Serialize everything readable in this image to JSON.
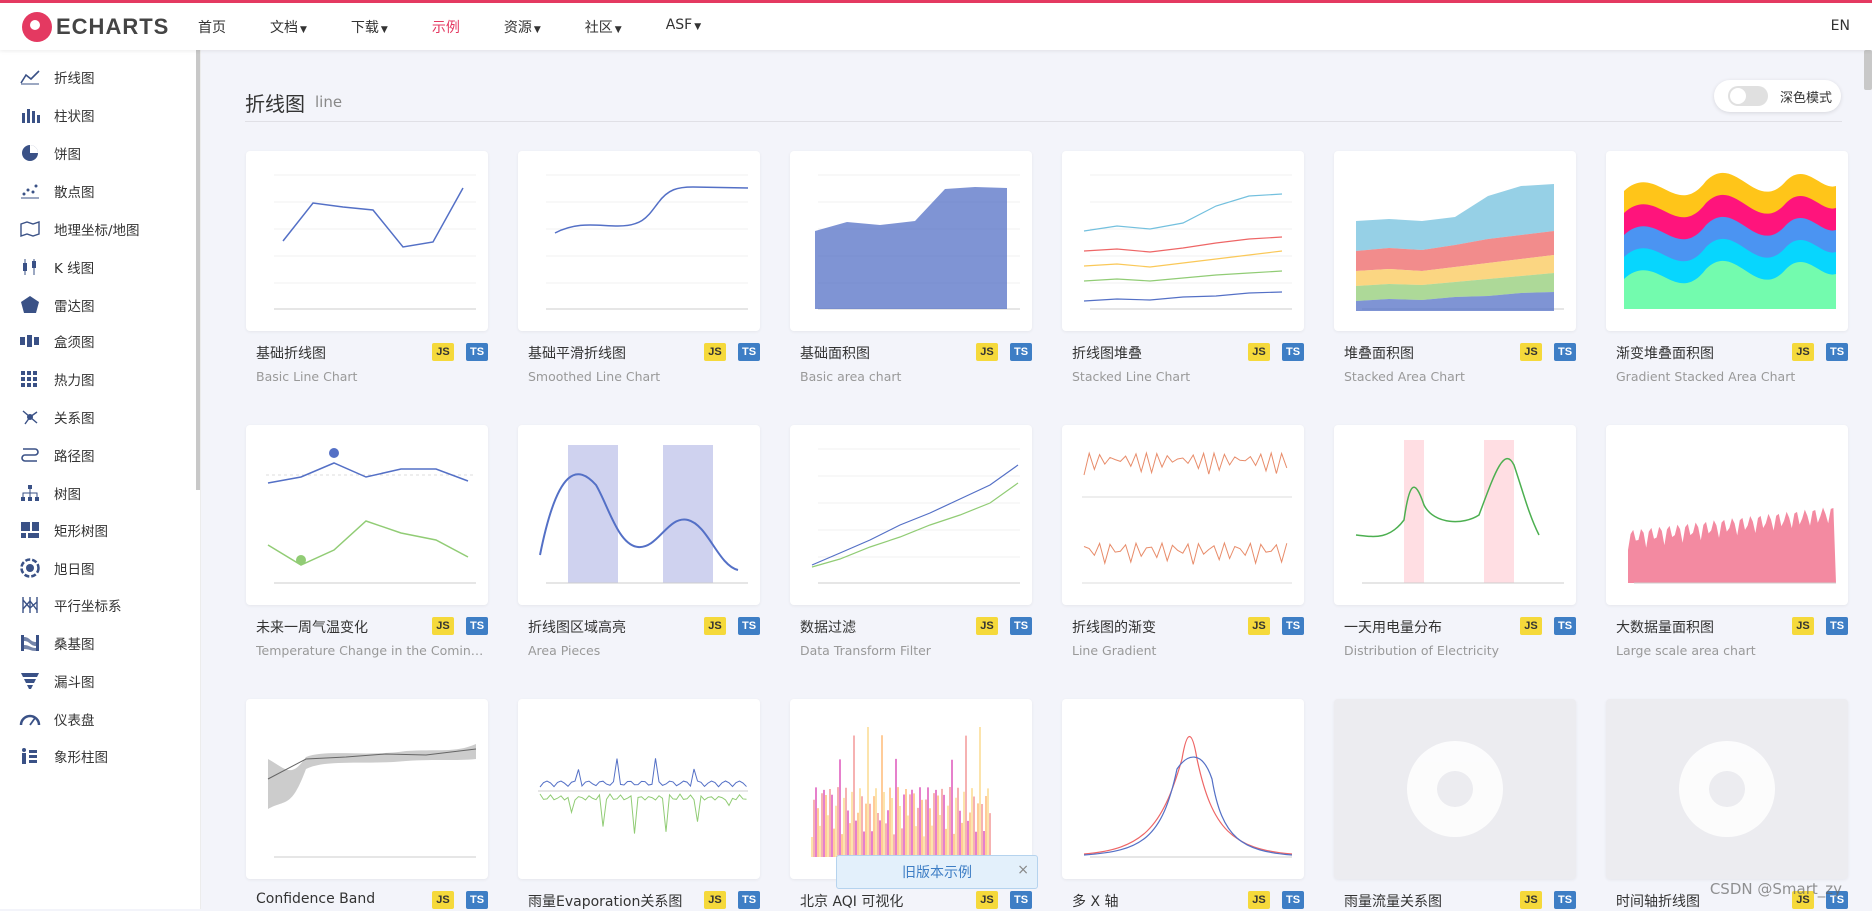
{
  "brand": {
    "logo_text": "ECHARTS",
    "accent": "#e43961",
    "nav_blue": "#3a5186"
  },
  "nav": [
    {
      "label": "首页",
      "caret": false,
      "active": false
    },
    {
      "label": "文档",
      "caret": true,
      "active": false
    },
    {
      "label": "下载",
      "caret": true,
      "active": false
    },
    {
      "label": "示例",
      "caret": false,
      "active": true
    },
    {
      "label": "资源",
      "caret": true,
      "active": false
    },
    {
      "label": "社区",
      "caret": true,
      "active": false
    },
    {
      "label": "ASF",
      "caret": true,
      "active": false
    }
  ],
  "lang": "EN",
  "sidebar": [
    {
      "label": "折线图",
      "icon": "line-chart-icon"
    },
    {
      "label": "柱状图",
      "icon": "bar-chart-icon",
      "active": true
    },
    {
      "label": "饼图",
      "icon": "pie-chart-icon"
    },
    {
      "label": "散点图",
      "icon": "scatter-chart-icon"
    },
    {
      "label": "地理坐标/地图",
      "icon": "map-icon"
    },
    {
      "label": "K 线图",
      "icon": "candlestick-icon"
    },
    {
      "label": "雷达图",
      "icon": "radar-icon"
    },
    {
      "label": "盒须图",
      "icon": "boxplot-icon"
    },
    {
      "label": "热力图",
      "icon": "heatmap-icon"
    },
    {
      "label": "关系图",
      "icon": "graph-icon"
    },
    {
      "label": "路径图",
      "icon": "lines-icon"
    },
    {
      "label": "树图",
      "icon": "tree-icon"
    },
    {
      "label": "矩形树图",
      "icon": "treemap-icon"
    },
    {
      "label": "旭日图",
      "icon": "sunburst-icon"
    },
    {
      "label": "平行坐标系",
      "icon": "parallel-icon"
    },
    {
      "label": "桑基图",
      "icon": "sankey-icon"
    },
    {
      "label": "漏斗图",
      "icon": "funnel-icon"
    },
    {
      "label": "仪表盘",
      "icon": "gauge-icon"
    },
    {
      "label": "象形柱图",
      "icon": "pictorial-bar-icon"
    }
  ],
  "main": {
    "title": "折线图",
    "subtitle": "line",
    "dark_mode_label": "深色模式"
  },
  "cards": [
    {
      "title": "基础折线图",
      "subtitle": "Basic Line Chart",
      "thumb": "basic-line"
    },
    {
      "title": "基础平滑折线图",
      "subtitle": "Smoothed Line Chart",
      "thumb": "smooth-line"
    },
    {
      "title": "基础面积图",
      "subtitle": "Basic area chart",
      "thumb": "basic-area"
    },
    {
      "title": "折线图堆叠",
      "subtitle": "Stacked Line Chart",
      "thumb": "stacked-line"
    },
    {
      "title": "堆叠面积图",
      "subtitle": "Stacked Area Chart",
      "thumb": "stacked-area"
    },
    {
      "title": "渐变堆叠面积图",
      "subtitle": "Gradient Stacked Area Chart",
      "thumb": "gradient-stacked"
    },
    {
      "title": "未来一周气温变化",
      "subtitle": "Temperature Change in the Coming Week",
      "thumb": "temperature"
    },
    {
      "title": "折线图区域高亮",
      "subtitle": "Area Pieces",
      "thumb": "area-pieces"
    },
    {
      "title": "数据过滤",
      "subtitle": "Data Transform Filter",
      "thumb": "data-filter"
    },
    {
      "title": "折线图的渐变",
      "subtitle": "Line Gradient",
      "thumb": "line-gradient"
    },
    {
      "title": "一天用电量分布",
      "subtitle": "Distribution of Electricity",
      "thumb": "electricity"
    },
    {
      "title": "大数据量面积图",
      "subtitle": "Large scale area chart",
      "thumb": "large-area"
    },
    {
      "title": "Confidence Band",
      "subtitle": "",
      "thumb": "confidence"
    },
    {
      "title": "雨量Evaporation关系图",
      "subtitle": "",
      "thumb": "rainfall"
    },
    {
      "title": "北京 AQI 可视化",
      "subtitle": "",
      "thumb": "aqi"
    },
    {
      "title": "多 X 轴",
      "subtitle": "",
      "thumb": "multi-x"
    },
    {
      "title": "雨量流量关系图",
      "subtitle": "",
      "thumb": "placeholder"
    },
    {
      "title": "时间轴折线图",
      "subtitle": "",
      "thumb": "placeholder"
    }
  ],
  "badges": {
    "js": "JS",
    "ts": "TS"
  },
  "banner": {
    "text": "旧版本示例",
    "close": "×"
  },
  "watermark": "CSDN @Smart_zy"
}
